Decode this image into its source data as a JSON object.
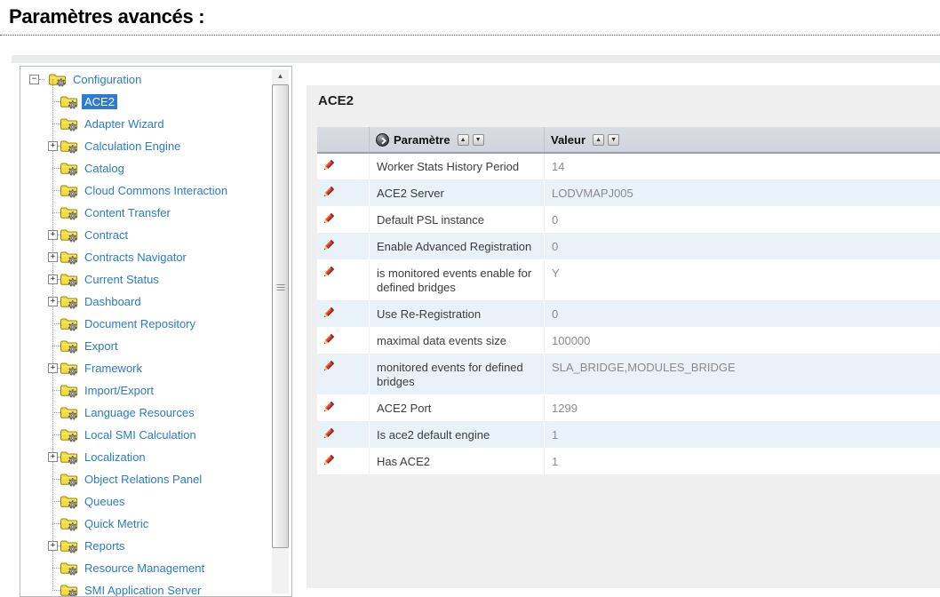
{
  "page": {
    "title": "Paramètres avancés :"
  },
  "tree": {
    "root": {
      "label": "Configuration",
      "expander": "minus"
    },
    "items": [
      {
        "label": "ACE2",
        "expander": "none",
        "selected": true
      },
      {
        "label": "Adapter Wizard",
        "expander": "none"
      },
      {
        "label": "Calculation Engine",
        "expander": "plus"
      },
      {
        "label": "Catalog",
        "expander": "none"
      },
      {
        "label": "Cloud Commons Interaction",
        "expander": "none"
      },
      {
        "label": "Content Transfer",
        "expander": "none"
      },
      {
        "label": "Contract",
        "expander": "plus"
      },
      {
        "label": "Contracts Navigator",
        "expander": "plus"
      },
      {
        "label": "Current Status",
        "expander": "plus"
      },
      {
        "label": "Dashboard",
        "expander": "plus"
      },
      {
        "label": "Document Repository",
        "expander": "none"
      },
      {
        "label": "Export",
        "expander": "none"
      },
      {
        "label": "Framework",
        "expander": "plus"
      },
      {
        "label": "Import/Export",
        "expander": "none"
      },
      {
        "label": "Language Resources",
        "expander": "none"
      },
      {
        "label": "Local SMI Calculation",
        "expander": "none"
      },
      {
        "label": "Localization",
        "expander": "plus"
      },
      {
        "label": "Object Relations Panel",
        "expander": "none"
      },
      {
        "label": "Queues",
        "expander": "none"
      },
      {
        "label": "Quick Metric",
        "expander": "none"
      },
      {
        "label": "Reports",
        "expander": "plus"
      },
      {
        "label": "Resource Management",
        "expander": "none"
      },
      {
        "label": "SMI Application Server",
        "expander": "none",
        "cut": true
      }
    ]
  },
  "content": {
    "title": "ACE2",
    "table": {
      "columns": {
        "param": "Paramètre",
        "value": "Valeur"
      },
      "rows": [
        {
          "param": "Worker Stats History Period",
          "value": "14"
        },
        {
          "param": "ACE2 Server",
          "value": "LODVMAPJ005"
        },
        {
          "param": "Default PSL instance",
          "value": "0"
        },
        {
          "param": "Enable Advanced Registration",
          "value": "0"
        },
        {
          "param": "is monitored events enable for defined bridges",
          "value": "Y"
        },
        {
          "param": "Use Re-Registration",
          "value": "0"
        },
        {
          "param": "maximal data events size",
          "value": "100000"
        },
        {
          "param": "monitored events for defined bridges",
          "value": "SLA_BRIDGE,MODULES_BRIDGE"
        },
        {
          "param": "ACE2 Port",
          "value": "1299"
        },
        {
          "param": "Is ace2 default engine",
          "value": "1"
        },
        {
          "param": "Has ACE2",
          "value": "1"
        }
      ]
    }
  },
  "icons": {
    "tree_folder": "folder-gear-icon",
    "row_edit": "pencil-icon",
    "param_header": "sphere-arrow-icon",
    "sort_asc": "▲",
    "sort_desc": "▼",
    "scroll_up": "▲",
    "expander_expanded": "−",
    "expander_collapsed": "+"
  },
  "colors": {
    "tree_link": "#2b7cc5",
    "selection_bg": "#2e7cd2",
    "selection_text": "#ffffff",
    "row_alt_bg": "#e9f1f9",
    "header_bg": "#d9dce2",
    "value_text": "#8b8b8b",
    "panel_bg": "#efeff0",
    "top_strip": "#e9eaea"
  }
}
